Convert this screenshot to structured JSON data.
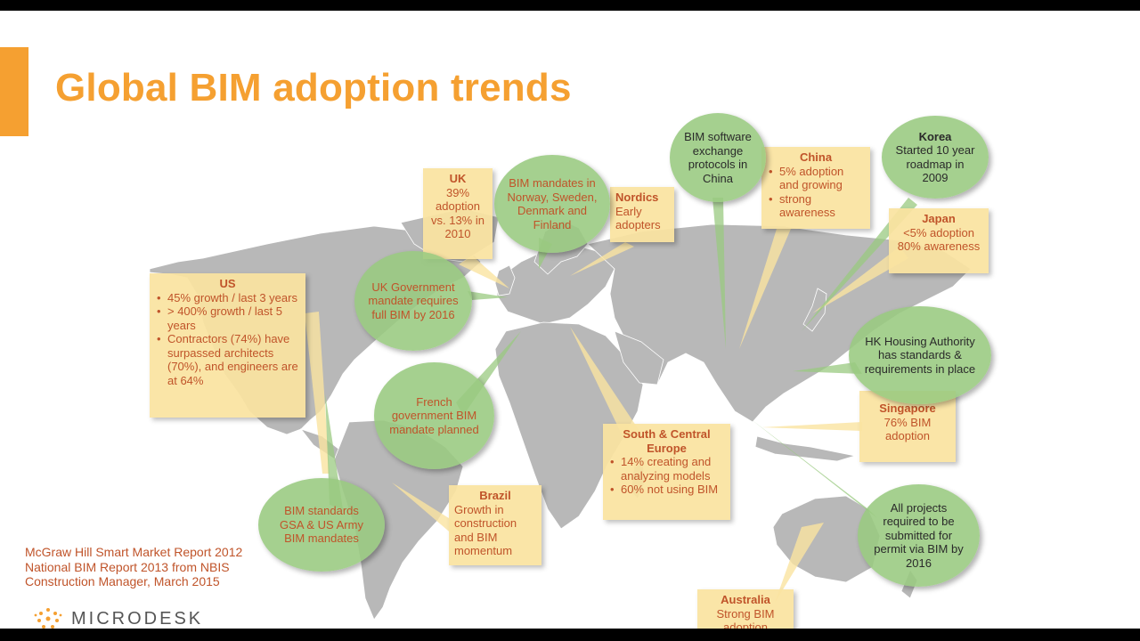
{
  "title": "Global BIM adoption trends",
  "callouts": {
    "us": {
      "title": "US",
      "items": [
        "45% growth / last 3 years",
        "> 400% growth / last 5 years",
        "Contractors (74%) have surpassed architects (70%), and engineers are at 64%"
      ]
    },
    "uk": {
      "title": "UK",
      "text": "39% adoption vs. 13% in 2010"
    },
    "nordics": {
      "title": "Nordics",
      "text": "Early adopters"
    },
    "china": {
      "title": "China",
      "items": [
        "5% adoption and growing",
        "strong awareness"
      ]
    },
    "japan": {
      "title": "Japan",
      "lines": [
        "<5% adoption",
        "80% awareness"
      ]
    },
    "singapore": {
      "title": "Singapore",
      "text": "76% BIM adoption"
    },
    "south_central_europe": {
      "title": "South & Central Europe",
      "items": [
        "14% creating and analyzing models",
        "60% not using BIM"
      ]
    },
    "brazil": {
      "title": "Brazil",
      "text": "Growth in construction and BIM momentum"
    },
    "australia": {
      "title": "Australia",
      "text": "Strong BIM adoption"
    }
  },
  "bubbles": {
    "uk_gov": "UK Government mandate requires full BIM by 2016",
    "norway": "BIM mandates in Norway, Sweden, Denmark and Finland",
    "china_exchange": "BIM software exchange protocols in China",
    "korea": {
      "title": "Korea",
      "text": "Started 10 year roadmap in 2009"
    },
    "hk": "HK Housing Authority has standards & requirements in place",
    "french": "French government BIM mandate planned",
    "us_standards": "BIM standards GSA & US Army BIM mandates",
    "projects": "All projects required to be submitted for permit via BIM by 2016"
  },
  "sources": [
    "McGraw Hill Smart Market Report 2012",
    "National BIM Report 2013 from NBIS",
    "Construction Manager, March 2015"
  ],
  "logo": "MICRODESK",
  "colors": {
    "accent": "#f5a031",
    "callout": "#fae3a0",
    "bubble": "#99c980",
    "text_rust": "#c0542a",
    "map": "#b8b8b8"
  }
}
